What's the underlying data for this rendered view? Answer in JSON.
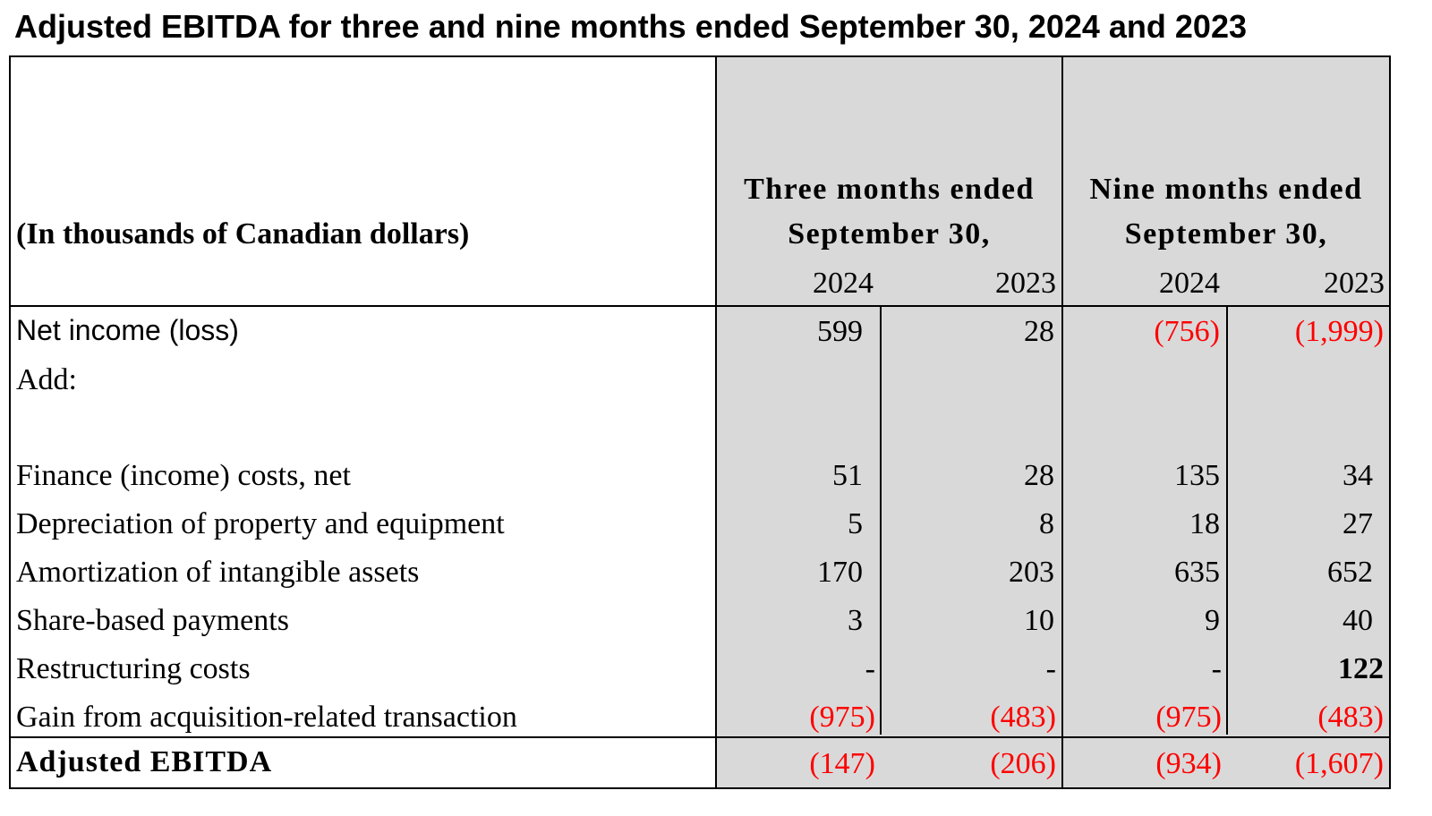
{
  "title": "Adjusted EBITDA for three and nine months ended September 30, 2024 and 2023",
  "units_label": "(In thousands of Canadian dollars)",
  "groups": [
    {
      "line1": "Three months ended",
      "line2": "September 30,",
      "years": [
        "2024",
        "2023"
      ]
    },
    {
      "line1": "Nine months ended",
      "line2": "September 30,",
      "years": [
        "2024",
        "2023"
      ]
    }
  ],
  "rows": [
    {
      "label": "Net income (loss)",
      "values": [
        "599",
        "28",
        "(756)",
        "(1,999)"
      ]
    },
    {
      "label": "Add:",
      "values": [
        "",
        "",
        "",
        ""
      ]
    },
    {
      "label": "Finance (income) costs, net",
      "values": [
        "51",
        "28",
        "135",
        "34"
      ]
    },
    {
      "label": "Depreciation of property and equipment",
      "values": [
        "5",
        "8",
        "18",
        "27"
      ]
    },
    {
      "label": "Amortization of intangible assets",
      "values": [
        "170",
        "203",
        "635",
        "652"
      ]
    },
    {
      "label": "Share-based payments",
      "values": [
        "3",
        "10",
        "9",
        "40"
      ]
    },
    {
      "label": "Restructuring costs",
      "values": [
        "-",
        "-",
        "-",
        "122"
      ]
    },
    {
      "label": "Gain from acquisition-related transaction",
      "values": [
        "(975)",
        "(483)",
        "(975)",
        "(483)"
      ]
    }
  ],
  "total": {
    "label": "Adjusted EBITDA",
    "values": [
      "(147)",
      "(206)",
      "(934)",
      "(1,607)"
    ]
  },
  "colors": {
    "negative": "#ff0000",
    "shading": "#d9d9d9",
    "text": "#000000"
  }
}
